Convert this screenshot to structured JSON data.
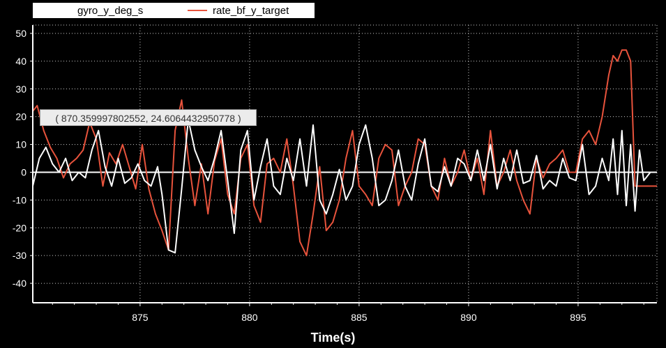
{
  "legend": {
    "series1_name": "gyro_y_deg_s",
    "series2_name": "rate_bf_y_target"
  },
  "tooltip": {
    "text": "( 870.359997802552, 24.6064432950778 )"
  },
  "chart_data": {
    "type": "line",
    "xlabel": "Time(s)",
    "ylabel": "",
    "xlim": [
      870.1,
      898.6
    ],
    "ylim": [
      -47,
      53
    ],
    "xticks": [
      875,
      880,
      885,
      890,
      895
    ],
    "yticks": [
      -40,
      -30,
      -20,
      -10,
      0,
      10,
      20,
      30,
      40,
      50
    ],
    "grid": true,
    "legend_position": "top-left",
    "colors": {
      "series1": "#ffffff",
      "series2": "#e8533c",
      "background": "#000000",
      "grid": "#cfcfcf"
    },
    "series": [
      {
        "name": "gyro_y_deg_s",
        "x": [
          870.1,
          870.4,
          870.7,
          871.0,
          871.3,
          871.6,
          871.9,
          872.2,
          872.5,
          872.8,
          873.1,
          873.4,
          873.7,
          874.0,
          874.3,
          874.6,
          874.9,
          875.2,
          875.5,
          875.8,
          876.0,
          876.3,
          876.6,
          876.9,
          877.2,
          877.5,
          877.8,
          878.1,
          878.4,
          878.7,
          879.0,
          879.3,
          879.6,
          879.9,
          880.2,
          880.5,
          880.8,
          881.1,
          881.4,
          881.7,
          882.0,
          882.3,
          882.6,
          882.9,
          883.2,
          883.5,
          883.8,
          884.1,
          884.4,
          884.7,
          885.0,
          885.3,
          885.6,
          885.9,
          886.2,
          886.5,
          886.8,
          887.1,
          887.4,
          887.7,
          888.0,
          888.3,
          888.6,
          888.9,
          889.2,
          889.5,
          889.8,
          890.1,
          890.4,
          890.7,
          891.0,
          891.3,
          891.6,
          891.9,
          892.2,
          892.5,
          892.8,
          893.1,
          893.4,
          893.7,
          894.0,
          894.3,
          894.6,
          894.9,
          895.2,
          895.5,
          895.8,
          896.1,
          896.4,
          896.6,
          896.8,
          897.0,
          897.2,
          897.4,
          897.6,
          897.8,
          898.0,
          898.3,
          898.6
        ],
        "values": [
          -5,
          5,
          9,
          3,
          0,
          5,
          -3,
          0,
          -2,
          8,
          15,
          2,
          -5,
          5,
          -4,
          -2,
          3,
          -3,
          -5,
          2,
          -8,
          -28,
          -29,
          -6,
          19,
          8,
          2,
          -3,
          5,
          15,
          -3,
          -22,
          8,
          15,
          -10,
          2,
          12,
          -5,
          -8,
          5,
          -3,
          12,
          -5,
          17,
          -10,
          -15,
          -8,
          1,
          -10,
          -5,
          10,
          17,
          5,
          -12,
          -10,
          -3,
          8,
          -5,
          -10,
          3,
          12,
          -5,
          -7,
          2,
          -5,
          5,
          3,
          -3,
          8,
          -3,
          10,
          -6,
          5,
          -3,
          8,
          -4,
          -3,
          6,
          -6,
          -3,
          -5,
          5,
          -2,
          -3,
          10,
          -8,
          -5,
          5,
          -3,
          12,
          -8,
          15,
          -12,
          10,
          -14,
          8,
          -3,
          0,
          0
        ]
      },
      {
        "name": "rate_bf_y_target",
        "x": [
          870.1,
          870.3,
          870.6,
          870.9,
          871.2,
          871.5,
          871.8,
          872.1,
          872.4,
          872.7,
          873.0,
          873.3,
          873.6,
          873.9,
          874.2,
          874.5,
          874.8,
          875.1,
          875.4,
          875.7,
          876.0,
          876.3,
          876.6,
          876.9,
          877.2,
          877.5,
          877.8,
          878.1,
          878.4,
          878.7,
          879.0,
          879.3,
          879.6,
          879.9,
          880.2,
          880.5,
          880.8,
          881.1,
          881.4,
          881.7,
          882.0,
          882.3,
          882.6,
          882.9,
          883.2,
          883.5,
          883.8,
          884.1,
          884.4,
          884.7,
          885.0,
          885.3,
          885.6,
          885.9,
          886.2,
          886.5,
          886.8,
          887.1,
          887.4,
          887.7,
          888.0,
          888.3,
          888.6,
          888.9,
          889.2,
          889.5,
          889.8,
          890.1,
          890.4,
          890.7,
          891.0,
          891.3,
          891.6,
          891.9,
          892.2,
          892.5,
          892.8,
          893.1,
          893.4,
          893.7,
          894.0,
          894.3,
          894.6,
          894.9,
          895.2,
          895.5,
          895.8,
          896.1,
          896.4,
          896.6,
          896.8,
          897.0,
          897.2,
          897.4,
          897.6,
          897.8,
          897.95,
          898.1,
          898.6
        ],
        "values": [
          22,
          24,
          15,
          9,
          5,
          -2,
          3,
          5,
          8,
          18,
          12,
          -5,
          7,
          3,
          10,
          2,
          -6,
          10,
          -6,
          -15,
          -21,
          -28,
          15,
          26,
          5,
          -12,
          3,
          -15,
          4,
          12,
          -8,
          -15,
          5,
          10,
          -12,
          -18,
          3,
          5,
          0,
          12,
          -5,
          -25,
          -30,
          -15,
          2,
          -21,
          -18,
          -10,
          5,
          15,
          -5,
          -8,
          -12,
          5,
          10,
          8,
          -12,
          -5,
          0,
          12,
          10,
          -5,
          -10,
          5,
          -5,
          0,
          8,
          -3,
          5,
          -8,
          15,
          -5,
          0,
          8,
          -3,
          -10,
          -15,
          5,
          -2,
          3,
          5,
          8,
          0,
          0,
          12,
          15,
          10,
          20,
          35,
          42,
          40,
          44,
          44,
          40,
          -5,
          -5,
          -5,
          -5,
          -5
        ]
      }
    ]
  }
}
